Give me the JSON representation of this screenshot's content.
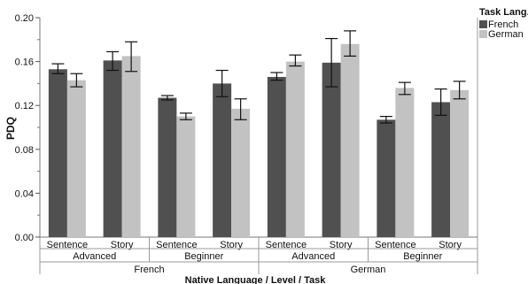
{
  "chart_data": {
    "type": "bar",
    "title": "",
    "ylabel": "PDQ",
    "xlabel": "Native Language / Level / Task",
    "ylim": [
      0,
      0.2
    ],
    "yticks": [
      "0.00",
      "0.04",
      "0.08",
      "0.12",
      "0.16",
      "0.20"
    ],
    "ytick_values": [
      0,
      0.04,
      0.08,
      0.12,
      0.16,
      0.2
    ],
    "grid": false,
    "legend": {
      "title": "Task Lang.",
      "placement": "top-right"
    },
    "series": [
      {
        "name": "French",
        "color": "#505050"
      },
      {
        "name": "German",
        "color": "#c2c2c2"
      }
    ],
    "groups": [
      {
        "native": "French",
        "level": "Advanced",
        "task": "Sentence",
        "values": [
          0.153,
          0.143
        ],
        "err_low": [
          0.149,
          0.137
        ],
        "err_high": [
          0.158,
          0.149
        ]
      },
      {
        "native": "French",
        "level": "Advanced",
        "task": "Story",
        "values": [
          0.161,
          0.165
        ],
        "err_low": [
          0.152,
          0.151
        ],
        "err_high": [
          0.169,
          0.178
        ]
      },
      {
        "native": "French",
        "level": "Beginner",
        "task": "Sentence",
        "values": [
          0.127,
          0.11
        ],
        "err_low": [
          0.125,
          0.107
        ],
        "err_high": [
          0.129,
          0.113
        ]
      },
      {
        "native": "French",
        "level": "Beginner",
        "task": "Story",
        "values": [
          0.14,
          0.117
        ],
        "err_low": [
          0.128,
          0.107
        ],
        "err_high": [
          0.152,
          0.126
        ]
      },
      {
        "native": "German",
        "level": "Advanced",
        "task": "Sentence",
        "values": [
          0.146,
          0.16
        ],
        "err_low": [
          0.143,
          0.156
        ],
        "err_high": [
          0.15,
          0.166
        ]
      },
      {
        "native": "German",
        "level": "Advanced",
        "task": "Story",
        "values": [
          0.159,
          0.176
        ],
        "err_low": [
          0.137,
          0.165
        ],
        "err_high": [
          0.181,
          0.188
        ]
      },
      {
        "native": "German",
        "level": "Beginner",
        "task": "Sentence",
        "values": [
          0.107,
          0.136
        ],
        "err_low": [
          0.104,
          0.13
        ],
        "err_high": [
          0.11,
          0.141
        ]
      },
      {
        "native": "German",
        "level": "Beginner",
        "task": "Story",
        "values": [
          0.123,
          0.134
        ],
        "err_low": [
          0.111,
          0.126
        ],
        "err_high": [
          0.135,
          0.142
        ]
      }
    ],
    "level_labels": [
      "Advanced",
      "Beginner",
      "Advanced",
      "Beginner"
    ],
    "native_labels": [
      "French",
      "German"
    ]
  }
}
